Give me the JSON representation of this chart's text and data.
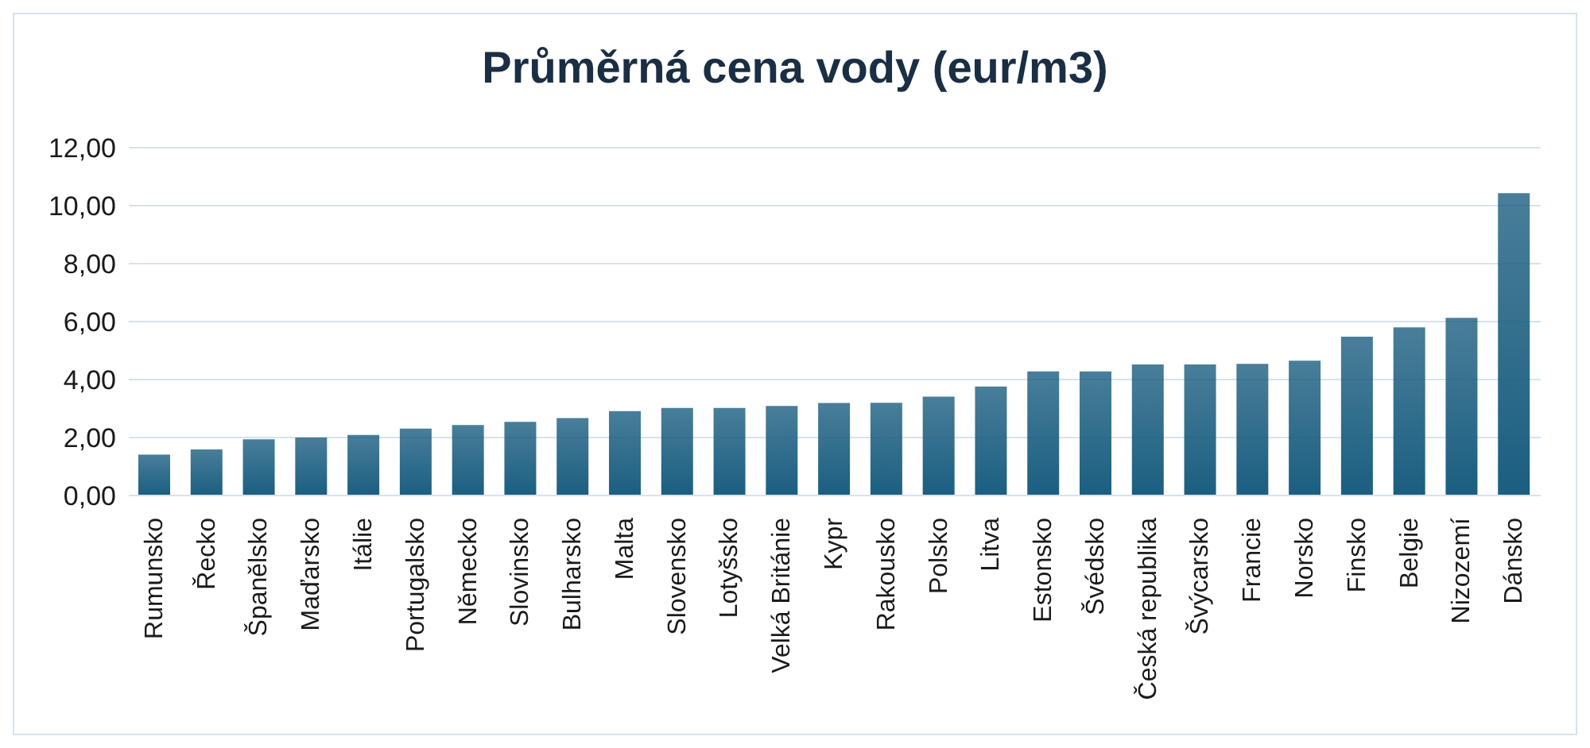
{
  "chart_data": {
    "type": "bar",
    "title": "Průměrná cena vody (eur/m3)",
    "categories": [
      "Rumunsko",
      "Řecko",
      "Španělsko",
      "Maďarsko",
      "Itálie",
      "Portugalsko",
      "Německo",
      "Slovinsko",
      "Bulharsko",
      "Malta",
      "Slovensko",
      "Lotyšsko",
      "Velká Británie",
      "Kypr",
      "Rakousko",
      "Polsko",
      "Litva",
      "Estonsko",
      "Švédsko",
      "Česká republika",
      "Švýcarsko",
      "Francie",
      "Norsko",
      "Finsko",
      "Belgie",
      "Nizozemí",
      "Dánsko"
    ],
    "values": [
      1.41,
      1.59,
      1.94,
      2.0,
      2.09,
      2.31,
      2.43,
      2.54,
      2.67,
      2.91,
      3.02,
      3.02,
      3.09,
      3.19,
      3.2,
      3.41,
      3.76,
      4.28,
      4.28,
      4.52,
      4.52,
      4.54,
      4.65,
      5.48,
      5.8,
      6.13,
      10.43
    ],
    "color": "#1b5e80",
    "ylim": [
      0,
      12
    ],
    "yticks": [
      {
        "value": 0,
        "label": "0,00"
      },
      {
        "value": 2,
        "label": "2,00"
      },
      {
        "value": 4,
        "label": "4,00"
      },
      {
        "value": 6,
        "label": "6,00"
      },
      {
        "value": 8,
        "label": "8,00"
      },
      {
        "value": 10,
        "label": "10,00"
      },
      {
        "value": 12,
        "label": "12,00"
      }
    ],
    "grid": "y"
  }
}
